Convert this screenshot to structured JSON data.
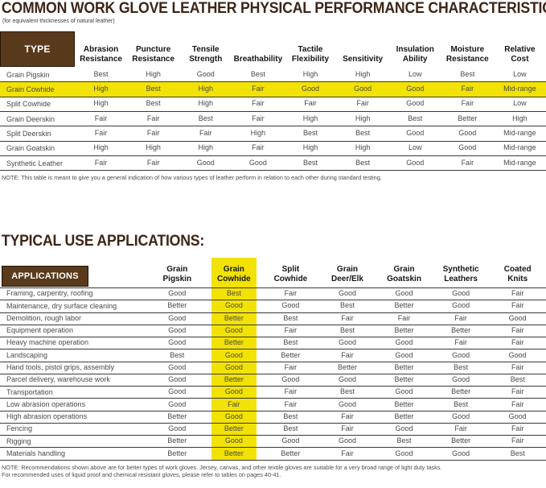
{
  "colors": {
    "title_brown": "#3d2517",
    "header_box_brown": "#5a3a1d",
    "highlight_yellow": "#f2e205",
    "row_line": "#3a3a3a",
    "cell_text": "#4a4a4a"
  },
  "section1": {
    "title": "COMMON WORK GLOVE LEATHER PHYSICAL PERFORMANCE CHARACTERISTICS:",
    "subtitle": "(for equivalent thicknesses of natural leather)",
    "note": "NOTE: This table is meant to give you a general indication of how various types of leather perform in relation to each other during standard testing.",
    "table": {
      "type_header": "TYPE",
      "columns": [
        "Abrasion Resistance",
        "Puncture Resistance",
        "Tensile Strength",
        "Breathability",
        "Tactile Flexibility",
        "Sensitivity",
        "Insulation Ability",
        "Moisture Resistance",
        "Relative Cost"
      ],
      "rows": [
        {
          "type": "Grain Pigskin",
          "highlight": false,
          "values": [
            "Best",
            "High",
            "Good",
            "Best",
            "High",
            "High",
            "Low",
            "Best",
            "Low"
          ]
        },
        {
          "type": "Grain Cowhide",
          "highlight": true,
          "values": [
            "High",
            "Best",
            "High",
            "Fair",
            "Good",
            "Good",
            "Good",
            "Fair",
            "Mid-range"
          ]
        },
        {
          "type": "Split Cowhide",
          "highlight": false,
          "values": [
            "High",
            "Best",
            "High",
            "Fair",
            "Fair",
            "Fair",
            "Good",
            "Fair",
            "Low"
          ]
        },
        {
          "type": "Grain Deerskin",
          "highlight": false,
          "values": [
            "Fair",
            "Fair",
            "Best",
            "Fair",
            "High",
            "High",
            "Best",
            "Better",
            "High"
          ]
        },
        {
          "type": "Split Deerskin",
          "highlight": false,
          "values": [
            "Fair",
            "Fair",
            "Fair",
            "High",
            "Best",
            "Best",
            "Good",
            "Good",
            "Mid-range"
          ]
        },
        {
          "type": "Grain Goatskin",
          "highlight": false,
          "values": [
            "High",
            "High",
            "High",
            "Fair",
            "High",
            "High",
            "Low",
            "Good",
            "Mid-range"
          ]
        },
        {
          "type": "Synthetic Leather",
          "highlight": false,
          "values": [
            "Fair",
            "Fair",
            "Good",
            "Good",
            "Best",
            "Best",
            "Good",
            "Fair",
            "Mid-range"
          ]
        }
      ]
    }
  },
  "section2": {
    "title": "TYPICAL USE APPLICATIONS:",
    "note_line1": "NOTE: Recommendations shown above are for better types of work gloves. Jersey, canvas, and other textile gloves are suitable for a very broad range of light duty tasks.",
    "note_line2": "For recommended uses of liquid proof and chemical resistant gloves, please refer to tables on pages 40-41.",
    "table": {
      "applications_header": "APPLICATIONS",
      "columns": [
        "Grain Pigskin",
        "Grain Cowhide",
        "Split Cowhide",
        "Grain Deer/Elk",
        "Grain Goatskin",
        "Synthetic Leathers",
        "Coated Knits"
      ],
      "highlight_column_index": 1,
      "rows": [
        {
          "application": "Framing, carpentry, roofing",
          "values": [
            "Good",
            "Best",
            "Fair",
            "Good",
            "Good",
            "Good",
            "Fair"
          ]
        },
        {
          "application": "Maintenance, dry surface cleaning",
          "values": [
            "Better",
            "Good",
            "Good",
            "Best",
            "Better",
            "Good",
            "Fair"
          ]
        },
        {
          "application": "Demolition, rough labor",
          "values": [
            "Good",
            "Better",
            "Best",
            "Fair",
            "Fair",
            "Fair",
            "Good"
          ]
        },
        {
          "application": "Equipment operation",
          "values": [
            "Good",
            "Good",
            "Fair",
            "Best",
            "Better",
            "Better",
            "Fair"
          ]
        },
        {
          "application": "Heavy machine operation",
          "values": [
            "Good",
            "Better",
            "Best",
            "Good",
            "Good",
            "Fair",
            "Fair"
          ]
        },
        {
          "application": "Landscaping",
          "values": [
            "Best",
            "Good",
            "Better",
            "Fair",
            "Good",
            "Good",
            "Good"
          ]
        },
        {
          "application": "Hand tools, pistol grips, assembly",
          "values": [
            "Good",
            "Good",
            "Fair",
            "Better",
            "Better",
            "Best",
            "Fair"
          ]
        },
        {
          "application": "Parcel delivery, warehouse work",
          "values": [
            "Good",
            "Better",
            "Good",
            "Good",
            "Better",
            "Good",
            "Best"
          ]
        },
        {
          "application": "Transportation",
          "values": [
            "Good",
            "Good",
            "Fair",
            "Best",
            "Good",
            "Better",
            "Fair"
          ]
        },
        {
          "application": "Low abrasion operations",
          "values": [
            "Good",
            "Fair",
            "Fair",
            "Good",
            "Better",
            "Best",
            "Fair"
          ]
        },
        {
          "application": "High abrasion operations",
          "values": [
            "Better",
            "Good",
            "Best",
            "Fair",
            "Better",
            "Good",
            "Good"
          ]
        },
        {
          "application": "Fencing",
          "values": [
            "Good",
            "Better",
            "Best",
            "Fair",
            "Good",
            "Fair",
            "Fair"
          ]
        },
        {
          "application": "Rigging",
          "values": [
            "Better",
            "Good",
            "Good",
            "Good",
            "Best",
            "Better",
            "Fair"
          ]
        },
        {
          "application": "Materials handling",
          "values": [
            "Better",
            "Better",
            "Better",
            "Fair",
            "Good",
            "Good",
            "Best"
          ]
        }
      ]
    }
  }
}
